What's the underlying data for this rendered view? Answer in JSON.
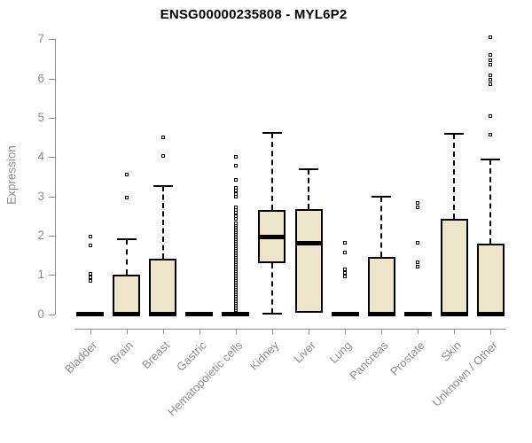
{
  "header": {
    "title": "ENSG00000235808 - MYL6P2"
  },
  "chart_data": {
    "type": "boxplot",
    "title": "ENSG00000235808 - MYL6P2",
    "xlabel": "",
    "ylabel": "Expression",
    "ylim": [
      0,
      7
    ],
    "y_ticks": [
      0,
      1,
      2,
      3,
      4,
      5,
      6,
      7
    ],
    "grid": false,
    "legend": "none",
    "box_fill": "#ECE5C9",
    "box_border": "#000000",
    "axis_color": "#8C8C8C",
    "title_color": "#000000",
    "categories": [
      "Bladder",
      "Brain",
      "Breast",
      "Gastric",
      "Hematopoietic cells",
      "Kidney",
      "Liver",
      "Lung",
      "Pancreas",
      "Prostate",
      "Skin",
      "Unknown / Other"
    ],
    "series": [
      {
        "label": "Bladder",
        "q1": 0,
        "median": 0,
        "q3": 0,
        "whisker_low": null,
        "whisker_high": null,
        "outliers": [
          1.98,
          1.76,
          1.02,
          0.93,
          0.85
        ]
      },
      {
        "label": "Brain",
        "q1": 0,
        "median": 0,
        "q3": 1.0,
        "whisker_low": null,
        "whisker_high": 1.9,
        "outliers": [
          3.55,
          2.96
        ]
      },
      {
        "label": "Breast",
        "q1": 0,
        "median": 0,
        "q3": 1.4,
        "whisker_low": null,
        "whisker_high": 3.27,
        "outliers": [
          4.5,
          4.04
        ]
      },
      {
        "label": "Gastric",
        "q1": 0,
        "median": 0,
        "q3": 0,
        "whisker_low": null,
        "whisker_high": null,
        "outliers": []
      },
      {
        "label": "Hematopoietic cells",
        "q1": 0,
        "median": 0,
        "q3": 0,
        "whisker_low": null,
        "whisker_high": null,
        "outliers": [
          2.42,
          2.5,
          2.58,
          2.66,
          2.73,
          2.98,
          3.06,
          3.14,
          3.22,
          3.41,
          3.78,
          4.0
        ],
        "outlier_band": [
          0.1,
          2.32
        ]
      },
      {
        "label": "Kidney",
        "q1": 1.3,
        "median": 1.97,
        "q3": 2.65,
        "whisker_low": 0.02,
        "whisker_high": 4.62,
        "outliers": []
      },
      {
        "label": "Liver",
        "q1": 0.03,
        "median": 1.8,
        "q3": 2.68,
        "whisker_low": null,
        "whisker_high": 3.68,
        "outliers": []
      },
      {
        "label": "Lung",
        "q1": 0,
        "median": 0,
        "q3": 0,
        "whisker_low": null,
        "whisker_high": null,
        "outliers": [
          1.81,
          1.57,
          1.13,
          1.04,
          0.95
        ]
      },
      {
        "label": "Pancreas",
        "q1": 0,
        "median": 0,
        "q3": 1.45,
        "whisker_low": null,
        "whisker_high": 3.0,
        "outliers": []
      },
      {
        "label": "Prostate",
        "q1": 0,
        "median": 0,
        "q3": 0,
        "whisker_low": null,
        "whisker_high": null,
        "outliers": [
          2.83,
          2.71,
          1.81,
          1.32,
          1.21
        ]
      },
      {
        "label": "Skin",
        "q1": 0,
        "median": 0,
        "q3": 2.43,
        "whisker_low": null,
        "whisker_high": 4.6,
        "outliers": []
      },
      {
        "label": "Unknown / Other",
        "q1": 0,
        "median": 0,
        "q3": 1.8,
        "whisker_low": null,
        "whisker_high": 3.95,
        "outliers": [
          7.05,
          6.6,
          6.47,
          6.35,
          6.08,
          5.96,
          5.85,
          5.05,
          4.58
        ]
      }
    ]
  }
}
